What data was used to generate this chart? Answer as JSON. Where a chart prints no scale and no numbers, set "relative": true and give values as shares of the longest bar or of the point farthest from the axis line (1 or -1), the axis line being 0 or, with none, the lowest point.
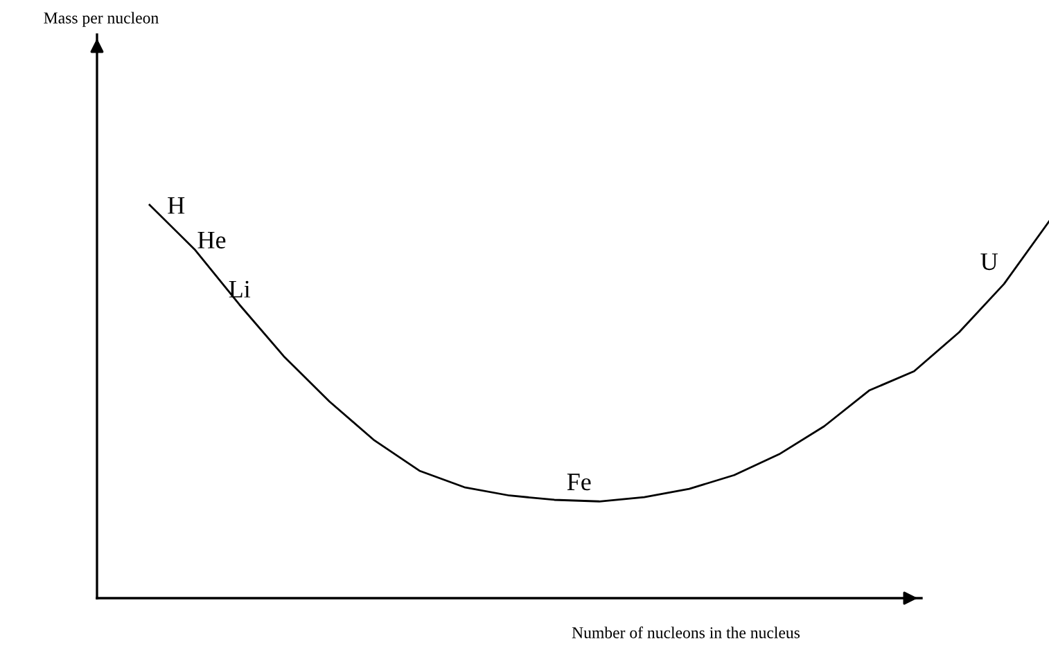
{
  "chart_data": {
    "type": "line",
    "relative": true,
    "xlabel": "Number of nucleons in the nucleus",
    "categories": [
      null,
      null,
      null,
      null,
      null,
      null,
      null,
      null,
      null,
      null,
      null,
      null,
      null,
      null,
      null,
      null,
      null,
      null,
      null,
      null,
      null
    ],
    "series": [
      {
        "color": "#000000",
        "values": [
          1,
          0.887,
          0.746,
          0.613,
          0.5,
          0.401,
          0.324,
          0.282,
          0.261,
          0.25,
          0.246,
          0.257,
          0.278,
          0.313,
          0.366,
          0.437,
          0.528,
          0.577,
          0.676,
          0.799,
          0.958
        ]
      }
    ],
    "annotations": [
      "H",
      "He",
      "Li",
      "Fe",
      "U",
      "Mass per nucleon"
    ],
    "grid": false,
    "legend": false,
    "marker": "none",
    "line_style": "solid"
  }
}
